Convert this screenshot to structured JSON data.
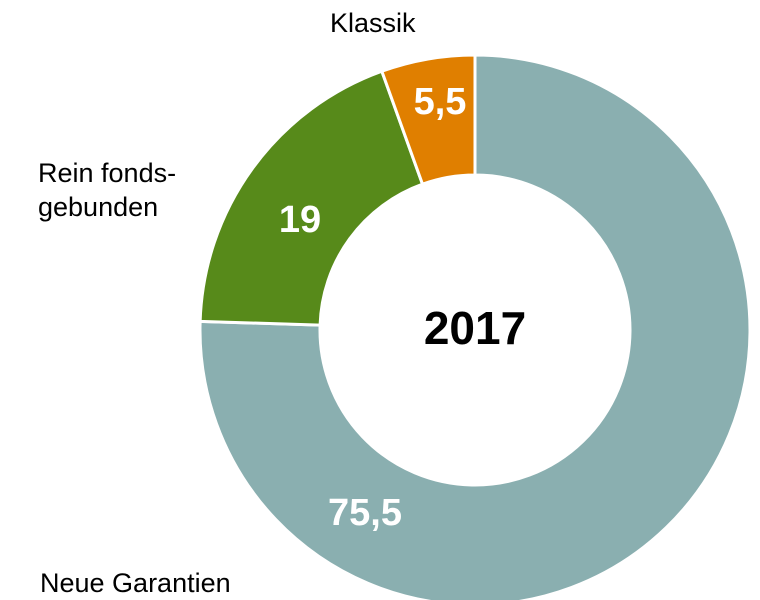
{
  "chart_data": {
    "type": "donut",
    "title": "2017",
    "categories": [
      "Neue Garantien",
      "Rein fonds-\ngebunden",
      "Klassik"
    ],
    "values": [
      75.5,
      19,
      5.5
    ],
    "value_labels": [
      "75,5",
      "19",
      "5,5"
    ],
    "colors": [
      "#8aafb0",
      "#578a1a",
      "#e07f00"
    ]
  }
}
